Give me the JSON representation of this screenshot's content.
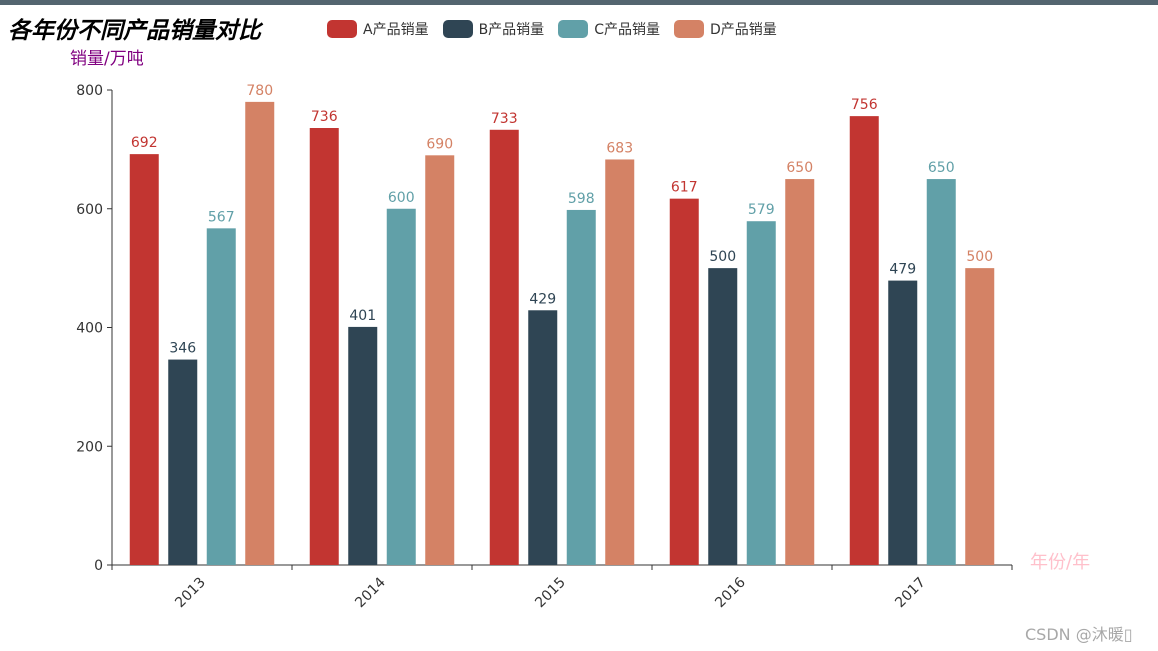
{
  "chart_data": {
    "type": "bar",
    "title": "各年份不同产品销量对比",
    "xlabel": "年份/年",
    "ylabel": "销量/万吨",
    "categories": [
      "2013",
      "2014",
      "2015",
      "2016",
      "2017"
    ],
    "ylim": [
      0,
      800
    ],
    "yticks": [
      0,
      200,
      400,
      600,
      800
    ],
    "grid": false,
    "legend_position": "top",
    "data_labels": true,
    "series": [
      {
        "name": "A产品销量",
        "color": "#c23531",
        "values": [
          692,
          736,
          733,
          617,
          756
        ]
      },
      {
        "name": "B产品销量",
        "color": "#2f4554",
        "values": [
          346,
          401,
          429,
          500,
          479
        ]
      },
      {
        "name": "C产品销量",
        "color": "#61a0a8",
        "values": [
          567,
          600,
          598,
          579,
          650
        ]
      },
      {
        "name": "D产品销量",
        "color": "#d48265",
        "values": [
          780,
          690,
          683,
          650,
          500
        ]
      }
    ]
  },
  "colors": {
    "top_bar": "#546570",
    "ylabel": "#800080",
    "xlabel": "#ffc0cb",
    "axis": "#333333"
  },
  "watermark": "CSDN @沐暖▯"
}
